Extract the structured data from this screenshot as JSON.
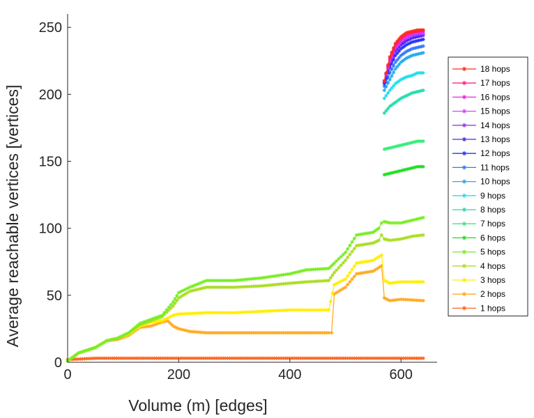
{
  "chart_data": {
    "type": "line",
    "title": "",
    "xlabel": "Volume (m) [edges]",
    "ylabel": "Average reachable vertices [vertices]",
    "xlim": [
      0,
      665
    ],
    "ylim": [
      0,
      260
    ],
    "xticks": [
      0,
      200,
      400,
      600
    ],
    "yticks": [
      0,
      50,
      100,
      150,
      200,
      250
    ],
    "grid": false,
    "legend_position": "right",
    "marker": "asterisk",
    "series": [
      {
        "name": "18 hops",
        "color": "#ff2a1a",
        "points": [
          [
            570,
            210
          ],
          [
            580,
            228
          ],
          [
            590,
            238
          ],
          [
            600,
            243
          ],
          [
            610,
            246
          ],
          [
            620,
            247
          ],
          [
            630,
            248
          ],
          [
            640,
            248
          ]
        ]
      },
      {
        "name": "17 hops",
        "color": "#ff2090",
        "points": [
          [
            570,
            210
          ],
          [
            580,
            227
          ],
          [
            590,
            237
          ],
          [
            600,
            242
          ],
          [
            610,
            245
          ],
          [
            620,
            246
          ],
          [
            630,
            247
          ],
          [
            640,
            248
          ]
        ]
      },
      {
        "name": "16 hops",
        "color": "#ee22dd",
        "points": [
          [
            570,
            210
          ],
          [
            580,
            226
          ],
          [
            590,
            236
          ],
          [
            600,
            241
          ],
          [
            610,
            244
          ],
          [
            620,
            246
          ],
          [
            630,
            247
          ],
          [
            640,
            247
          ]
        ]
      },
      {
        "name": "15 hops",
        "color": "#d344ff",
        "points": [
          [
            570,
            210
          ],
          [
            580,
            225
          ],
          [
            590,
            235
          ],
          [
            600,
            240
          ],
          [
            610,
            243
          ],
          [
            620,
            245
          ],
          [
            630,
            246
          ],
          [
            640,
            246
          ]
        ]
      },
      {
        "name": "14 hops",
        "color": "#9933ff",
        "points": [
          [
            570,
            210
          ],
          [
            580,
            224
          ],
          [
            590,
            234
          ],
          [
            600,
            239
          ],
          [
            610,
            242
          ],
          [
            620,
            244
          ],
          [
            630,
            245
          ],
          [
            640,
            245
          ]
        ]
      },
      {
        "name": "13 hops",
        "color": "#5522ee",
        "points": [
          [
            570,
            209
          ],
          [
            580,
            222
          ],
          [
            590,
            232
          ],
          [
            600,
            237
          ],
          [
            610,
            240
          ],
          [
            620,
            242
          ],
          [
            630,
            243
          ],
          [
            640,
            244
          ]
        ]
      },
      {
        "name": "12 hops",
        "color": "#2233ff",
        "points": [
          [
            570,
            208
          ],
          [
            580,
            220
          ],
          [
            590,
            229
          ],
          [
            600,
            234
          ],
          [
            610,
            237
          ],
          [
            620,
            239
          ],
          [
            630,
            240
          ],
          [
            640,
            241
          ]
        ]
      },
      {
        "name": "11 hops",
        "color": "#3377ff",
        "points": [
          [
            570,
            206
          ],
          [
            580,
            216
          ],
          [
            590,
            224
          ],
          [
            600,
            229
          ],
          [
            610,
            232
          ],
          [
            620,
            234
          ],
          [
            630,
            235
          ],
          [
            640,
            236
          ]
        ]
      },
      {
        "name": "10 hops",
        "color": "#22aaee",
        "points": [
          [
            570,
            203
          ],
          [
            580,
            211
          ],
          [
            590,
            219
          ],
          [
            600,
            224
          ],
          [
            610,
            227
          ],
          [
            620,
            229
          ],
          [
            630,
            230
          ],
          [
            640,
            231
          ]
        ]
      },
      {
        "name": "9 hops",
        "color": "#22ddee",
        "points": [
          [
            570,
            197
          ],
          [
            580,
            203
          ],
          [
            590,
            208
          ],
          [
            600,
            211
          ],
          [
            610,
            213
          ],
          [
            620,
            214
          ],
          [
            630,
            216
          ],
          [
            640,
            216
          ]
        ]
      },
      {
        "name": "8 hops",
        "color": "#22ddaa",
        "points": [
          [
            570,
            186
          ],
          [
            580,
            191
          ],
          [
            590,
            194
          ],
          [
            600,
            197
          ],
          [
            610,
            199
          ],
          [
            620,
            201
          ],
          [
            630,
            202
          ],
          [
            640,
            203
          ]
        ]
      },
      {
        "name": "7 hops",
        "color": "#33ee77",
        "points": [
          [
            570,
            159
          ],
          [
            580,
            160
          ],
          [
            590,
            161
          ],
          [
            600,
            162
          ],
          [
            610,
            163
          ],
          [
            620,
            164
          ],
          [
            630,
            165
          ],
          [
            640,
            165
          ]
        ]
      },
      {
        "name": "6 hops",
        "color": "#22dd22",
        "points": [
          [
            570,
            140
          ],
          [
            580,
            141
          ],
          [
            590,
            142
          ],
          [
            600,
            143
          ],
          [
            610,
            144
          ],
          [
            620,
            145
          ],
          [
            630,
            146
          ],
          [
            640,
            146
          ]
        ]
      },
      {
        "name": "5 hops",
        "color": "#77ee22",
        "points": [
          [
            0,
            1
          ],
          [
            20,
            7
          ],
          [
            50,
            11
          ],
          [
            70,
            16
          ],
          [
            90,
            18
          ],
          [
            110,
            22
          ],
          [
            130,
            29
          ],
          [
            150,
            32
          ],
          [
            170,
            35
          ],
          [
            190,
            45
          ],
          [
            200,
            52
          ],
          [
            220,
            56
          ],
          [
            250,
            61
          ],
          [
            300,
            61
          ],
          [
            350,
            63
          ],
          [
            400,
            66
          ],
          [
            430,
            69
          ],
          [
            470,
            70
          ],
          [
            480,
            74
          ],
          [
            500,
            82
          ],
          [
            520,
            95
          ],
          [
            550,
            97
          ],
          [
            560,
            100
          ],
          [
            565,
            104
          ],
          [
            570,
            105
          ],
          [
            580,
            104
          ],
          [
            600,
            104
          ],
          [
            620,
            106
          ],
          [
            640,
            108
          ]
        ]
      },
      {
        "name": "4 hops",
        "color": "#aadd22",
        "points": [
          [
            0,
            1
          ],
          [
            20,
            7
          ],
          [
            50,
            11
          ],
          [
            70,
            16
          ],
          [
            90,
            18
          ],
          [
            110,
            22
          ],
          [
            130,
            28
          ],
          [
            150,
            31
          ],
          [
            170,
            34
          ],
          [
            190,
            42
          ],
          [
            200,
            48
          ],
          [
            220,
            53
          ],
          [
            250,
            56
          ],
          [
            300,
            56
          ],
          [
            350,
            57
          ],
          [
            400,
            59
          ],
          [
            430,
            60
          ],
          [
            470,
            61
          ],
          [
            480,
            67
          ],
          [
            500,
            76
          ],
          [
            520,
            87
          ],
          [
            550,
            89
          ],
          [
            560,
            91
          ],
          [
            565,
            95
          ],
          [
            570,
            92
          ],
          [
            580,
            91
          ],
          [
            600,
            92
          ],
          [
            620,
            94
          ],
          [
            640,
            95
          ]
        ]
      },
      {
        "name": "3 hops",
        "color": "#ffee00",
        "points": [
          [
            0,
            1
          ],
          [
            20,
            7
          ],
          [
            50,
            11
          ],
          [
            70,
            16
          ],
          [
            90,
            18
          ],
          [
            110,
            21
          ],
          [
            130,
            27
          ],
          [
            150,
            30
          ],
          [
            170,
            31
          ],
          [
            190,
            35
          ],
          [
            200,
            36
          ],
          [
            250,
            37
          ],
          [
            300,
            37
          ],
          [
            350,
            38
          ],
          [
            400,
            39
          ],
          [
            470,
            39
          ],
          [
            480,
            58
          ],
          [
            500,
            62
          ],
          [
            520,
            74
          ],
          [
            550,
            76
          ],
          [
            565,
            80
          ],
          [
            570,
            61
          ],
          [
            580,
            59
          ],
          [
            600,
            60
          ],
          [
            640,
            60
          ]
        ]
      },
      {
        "name": "2 hops",
        "color": "#ffaa22",
        "points": [
          [
            0,
            1
          ],
          [
            20,
            7
          ],
          [
            50,
            11
          ],
          [
            70,
            16
          ],
          [
            90,
            17
          ],
          [
            110,
            20
          ],
          [
            130,
            26
          ],
          [
            150,
            27
          ],
          [
            170,
            30
          ],
          [
            180,
            31
          ],
          [
            190,
            27
          ],
          [
            200,
            25
          ],
          [
            220,
            23
          ],
          [
            250,
            22
          ],
          [
            300,
            22
          ],
          [
            350,
            22
          ],
          [
            400,
            22
          ],
          [
            470,
            22
          ],
          [
            475,
            22
          ],
          [
            480,
            51
          ],
          [
            500,
            56
          ],
          [
            520,
            66
          ],
          [
            550,
            68
          ],
          [
            565,
            72
          ],
          [
            570,
            48
          ],
          [
            580,
            46
          ],
          [
            600,
            47
          ],
          [
            640,
            46
          ]
        ]
      },
      {
        "name": "1 hops",
        "color": "#ff6622",
        "points": [
          [
            0,
            2
          ],
          [
            50,
            3
          ],
          [
            100,
            3
          ],
          [
            200,
            3
          ],
          [
            300,
            3
          ],
          [
            400,
            3
          ],
          [
            500,
            3
          ],
          [
            600,
            3
          ],
          [
            640,
            3
          ]
        ]
      }
    ]
  }
}
